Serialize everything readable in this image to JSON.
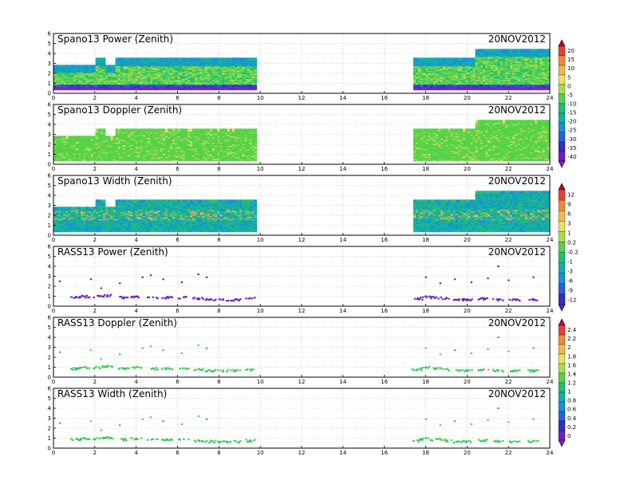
{
  "chart_data": [
    {
      "type": "heatmap",
      "title": "Spano13 Power (Zenith)",
      "date": "20NOV2012",
      "x_ticks": [
        "0",
        "2",
        "4",
        "6",
        "8",
        "10",
        "12",
        "14",
        "16",
        "18",
        "20",
        "22",
        "24"
      ],
      "y_ticks": [
        "0",
        "1",
        "2",
        "3",
        "4",
        "5",
        "6"
      ],
      "xlim": [
        0,
        24
      ],
      "ylim": [
        0,
        6
      ],
      "grid": true,
      "colorbar_group": 0,
      "segments": [
        {
          "x_start": 0.0,
          "x_end": 9.8,
          "y_top_steps": [
            [
              0.0,
              2.6
            ],
            [
              2.0,
              3.3
            ],
            [
              2.5,
              2.6
            ],
            [
              3.0,
              3.3
            ],
            [
              9.8,
              3.3
            ]
          ]
        },
        {
          "x_start": 17.4,
          "x_end": 24.0,
          "y_top_steps": [
            [
              17.4,
              3.3
            ],
            [
              20.3,
              4.2
            ],
            [
              24.0,
              4.2
            ]
          ]
        }
      ]
    },
    {
      "type": "heatmap",
      "title": "Spano13 Doppler (Zenith)",
      "date": "20NOV2012",
      "x_ticks": [
        "0",
        "2",
        "4",
        "6",
        "8",
        "10",
        "12",
        "14",
        "16",
        "18",
        "20",
        "22",
        "24"
      ],
      "y_ticks": [
        "0",
        "1",
        "2",
        "3",
        "4",
        "5",
        "6"
      ],
      "xlim": [
        0,
        24
      ],
      "ylim": [
        0,
        6
      ],
      "grid": true,
      "colorbar_group": 0,
      "segments": [
        {
          "x_start": 0.0,
          "x_end": 9.8,
          "y_top_steps": [
            [
              0.0,
              2.6
            ],
            [
              2.0,
              3.3
            ],
            [
              2.5,
              2.6
            ],
            [
              3.0,
              3.3
            ],
            [
              9.8,
              3.3
            ]
          ]
        },
        {
          "x_start": 17.4,
          "x_end": 24.0,
          "y_top_steps": [
            [
              17.4,
              3.3
            ],
            [
              20.3,
              4.2
            ],
            [
              24.0,
              4.2
            ]
          ]
        }
      ]
    },
    {
      "type": "heatmap",
      "title": "Spano13 Width (Zenith)",
      "date": "20NOV2012",
      "x_ticks": [
        "0",
        "2",
        "4",
        "6",
        "8",
        "10",
        "12",
        "14",
        "16",
        "18",
        "20",
        "22",
        "24"
      ],
      "y_ticks": [
        "0",
        "1",
        "2",
        "3",
        "4",
        "5",
        "6"
      ],
      "xlim": [
        0,
        24
      ],
      "ylim": [
        0,
        6
      ],
      "grid": true,
      "colorbar_group": 1,
      "segments": [
        {
          "x_start": 0.0,
          "x_end": 9.8,
          "y_top_steps": [
            [
              0.0,
              2.6
            ],
            [
              2.0,
              3.3
            ],
            [
              2.5,
              2.6
            ],
            [
              3.0,
              3.3
            ],
            [
              9.8,
              3.3
            ]
          ]
        },
        {
          "x_start": 17.4,
          "x_end": 24.0,
          "y_top_steps": [
            [
              17.4,
              3.3
            ],
            [
              20.3,
              4.2
            ],
            [
              24.0,
              4.2
            ]
          ]
        }
      ]
    },
    {
      "type": "scatter",
      "title": "RASS13 Power (Zenith)",
      "date": "20NOV2012",
      "x_ticks": [
        "0",
        "2",
        "4",
        "6",
        "8",
        "10",
        "12",
        "14",
        "16",
        "18",
        "20",
        "22",
        "24"
      ],
      "y_ticks": [
        "0",
        "1",
        "2",
        "3",
        "4",
        "5",
        "6"
      ],
      "xlim": [
        0,
        24
      ],
      "ylim": [
        0,
        6
      ],
      "grid": true,
      "colorbar_group": 1,
      "points": [
        [
          1.1,
          0.9
        ],
        [
          1.5,
          1.0
        ],
        [
          2.2,
          1.0
        ],
        [
          2.6,
          1.1
        ],
        [
          3.4,
          0.9
        ],
        [
          4.0,
          1.0
        ],
        [
          4.8,
          0.9
        ],
        [
          5.5,
          0.9
        ],
        [
          6.3,
          0.9
        ],
        [
          7.0,
          0.8
        ],
        [
          7.6,
          0.7
        ],
        [
          8.2,
          0.7
        ],
        [
          8.8,
          0.7
        ],
        [
          9.5,
          0.8
        ],
        [
          17.6,
          0.8
        ],
        [
          18.0,
          1.0
        ],
        [
          18.5,
          0.9
        ],
        [
          19.0,
          0.8
        ],
        [
          19.6,
          0.7
        ],
        [
          20.0,
          0.7
        ],
        [
          20.8,
          0.8
        ],
        [
          21.5,
          0.7
        ],
        [
          22.3,
          0.7
        ],
        [
          23.2,
          0.7
        ],
        [
          0.3,
          2.5
        ],
        [
          1.8,
          2.7
        ],
        [
          2.3,
          1.8
        ],
        [
          3.2,
          2.3
        ],
        [
          4.3,
          2.9
        ],
        [
          4.7,
          3.1
        ],
        [
          5.3,
          2.7
        ],
        [
          6.2,
          2.4
        ],
        [
          7.0,
          3.2
        ],
        [
          7.4,
          2.9
        ],
        [
          18.0,
          2.9
        ],
        [
          18.7,
          2.3
        ],
        [
          19.4,
          2.7
        ],
        [
          20.2,
          2.4
        ],
        [
          21.0,
          2.8
        ],
        [
          21.5,
          4.0
        ],
        [
          22.0,
          2.6
        ],
        [
          23.2,
          2.9
        ]
      ]
    },
    {
      "type": "scatter",
      "title": "RASS13 Doppler (Zenith)",
      "date": "20NOV2012",
      "x_ticks": [
        "0",
        "2",
        "4",
        "6",
        "8",
        "10",
        "12",
        "14",
        "16",
        "18",
        "20",
        "22",
        "24"
      ],
      "y_ticks": [
        "0",
        "1",
        "2",
        "3",
        "4",
        "5",
        "6"
      ],
      "xlim": [
        0,
        24
      ],
      "ylim": [
        0,
        6
      ],
      "grid": true,
      "colorbar_group": 2,
      "points": [
        [
          1.1,
          0.9
        ],
        [
          1.5,
          1.0
        ],
        [
          2.2,
          1.0
        ],
        [
          2.6,
          1.1
        ],
        [
          3.4,
          0.9
        ],
        [
          4.0,
          1.0
        ],
        [
          4.8,
          0.9
        ],
        [
          5.5,
          0.9
        ],
        [
          6.3,
          0.9
        ],
        [
          7.0,
          0.8
        ],
        [
          7.6,
          0.7
        ],
        [
          8.2,
          0.7
        ],
        [
          8.8,
          0.7
        ],
        [
          9.5,
          0.8
        ],
        [
          17.6,
          0.8
        ],
        [
          18.0,
          1.0
        ],
        [
          18.5,
          0.9
        ],
        [
          19.0,
          0.8
        ],
        [
          19.6,
          0.7
        ],
        [
          20.0,
          0.7
        ],
        [
          20.8,
          0.8
        ],
        [
          21.5,
          0.7
        ],
        [
          22.3,
          0.7
        ],
        [
          23.2,
          0.7
        ],
        [
          0.3,
          2.5
        ],
        [
          1.8,
          2.7
        ],
        [
          2.3,
          1.8
        ],
        [
          3.2,
          2.3
        ],
        [
          4.3,
          2.9
        ],
        [
          4.7,
          3.1
        ],
        [
          5.3,
          2.7
        ],
        [
          6.2,
          2.4
        ],
        [
          7.0,
          3.2
        ],
        [
          7.4,
          2.9
        ],
        [
          18.0,
          2.9
        ],
        [
          18.7,
          2.3
        ],
        [
          19.4,
          2.7
        ],
        [
          20.2,
          2.4
        ],
        [
          21.0,
          2.8
        ],
        [
          21.5,
          4.0
        ],
        [
          22.0,
          2.6
        ],
        [
          23.2,
          2.9
        ]
      ]
    },
    {
      "type": "scatter",
      "title": "RASS13 Width (Zenith)",
      "date": "20NOV2012",
      "x_ticks": [
        "0",
        "2",
        "4",
        "6",
        "8",
        "10",
        "12",
        "14",
        "16",
        "18",
        "20",
        "22",
        "24"
      ],
      "y_ticks": [
        "0",
        "1",
        "2",
        "3",
        "4",
        "5",
        "6"
      ],
      "xlim": [
        0,
        24
      ],
      "ylim": [
        0,
        6
      ],
      "grid": true,
      "colorbar_group": 2,
      "points": [
        [
          1.1,
          0.9
        ],
        [
          1.5,
          1.0
        ],
        [
          2.2,
          1.0
        ],
        [
          2.6,
          1.1
        ],
        [
          3.4,
          0.9
        ],
        [
          4.0,
          1.0
        ],
        [
          4.8,
          0.9
        ],
        [
          5.5,
          0.9
        ],
        [
          6.3,
          0.9
        ],
        [
          7.0,
          0.8
        ],
        [
          7.6,
          0.7
        ],
        [
          8.2,
          0.7
        ],
        [
          8.8,
          0.7
        ],
        [
          9.5,
          0.8
        ],
        [
          17.6,
          0.8
        ],
        [
          18.0,
          1.0
        ],
        [
          18.5,
          0.9
        ],
        [
          19.0,
          0.8
        ],
        [
          19.6,
          0.7
        ],
        [
          20.0,
          0.7
        ],
        [
          20.8,
          0.8
        ],
        [
          21.5,
          0.7
        ],
        [
          22.3,
          0.7
        ],
        [
          23.2,
          0.7
        ],
        [
          0.3,
          2.5
        ],
        [
          1.8,
          2.7
        ],
        [
          2.3,
          1.8
        ],
        [
          3.2,
          2.3
        ],
        [
          4.3,
          2.9
        ],
        [
          4.7,
          3.1
        ],
        [
          5.3,
          2.7
        ],
        [
          6.2,
          2.4
        ],
        [
          7.0,
          3.2
        ],
        [
          7.4,
          2.9
        ],
        [
          18.0,
          2.9
        ],
        [
          18.7,
          2.3
        ],
        [
          19.4,
          2.7
        ],
        [
          20.2,
          2.4
        ],
        [
          21.0,
          2.8
        ],
        [
          21.5,
          4.0
        ],
        [
          22.0,
          2.6
        ],
        [
          23.2,
          2.9
        ]
      ]
    }
  ],
  "colorbars": [
    {
      "labels": [
        "20",
        "15",
        "10",
        "5",
        "0",
        "-5",
        "-10",
        "-15",
        "-20",
        "-25",
        "-30",
        "-35",
        "-40"
      ],
      "colors": [
        "#cc0030",
        "#e8403a",
        "#f08a3a",
        "#f2b84a",
        "#e8e060",
        "#a8dc50",
        "#56d24a",
        "#20c070",
        "#10b0a8",
        "#1890d8",
        "#2860e0",
        "#3030c8",
        "#6a20c0",
        "#9020b0"
      ]
    },
    {
      "labels": [
        "12",
        "9",
        "6",
        "3",
        "1",
        "0.2",
        "-0.2",
        "-1",
        "-3",
        "-6",
        "-9",
        "-12"
      ],
      "colors": [
        "#cc0030",
        "#e8403a",
        "#f08a3a",
        "#f2b84a",
        "#e8e060",
        "#a8dc50",
        "#56d24a",
        "#20c070",
        "#10b0a8",
        "#1890d8",
        "#2860e0",
        "#3030c8",
        "#6a20c0"
      ]
    },
    {
      "labels": [
        "2.4",
        "2.2",
        "2",
        "1.8",
        "1.6",
        "1.4",
        "1.2",
        "1",
        "0.8",
        "0.6",
        "0.4",
        "0.2",
        "0"
      ],
      "colors": [
        "#cc0030",
        "#e8403a",
        "#f08a3a",
        "#f2b84a",
        "#e8e060",
        "#a8dc50",
        "#56d24a",
        "#20c070",
        "#10b0a8",
        "#1890d8",
        "#2860e0",
        "#3030c8",
        "#6a20c0",
        "#9020b0"
      ]
    }
  ]
}
